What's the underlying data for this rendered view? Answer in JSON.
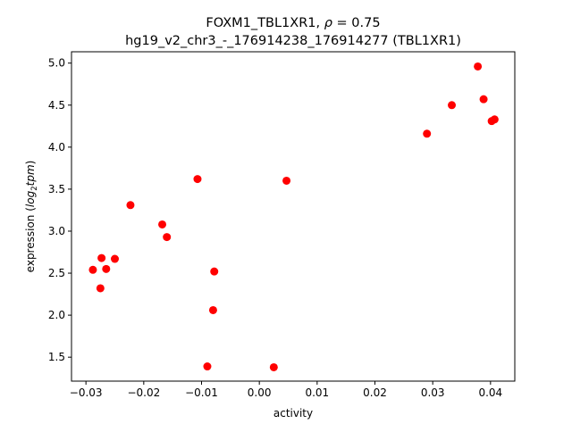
{
  "chart_data": {
    "type": "scatter",
    "title_line1_prefix": "FOXM1_TBL1XR1, ",
    "title_rho_symbol": "ρ",
    "title_rho_value": " = 0.75",
    "title_line2": "hg19_v2_chr3_-_176914238_176914277 (TBL1XR1)",
    "xlabel": "activity",
    "ylabel_prefix": "expression (",
    "ylabel_log": "log",
    "ylabel_sub": "2",
    "ylabel_tpm": "tpm",
    "ylabel_suffix": ")",
    "xlim": [
      -0.0325,
      0.0442
    ],
    "ylim": [
      1.215,
      5.135
    ],
    "xticks": [
      -0.03,
      -0.02,
      -0.01,
      0.0,
      0.01,
      0.02,
      0.03,
      0.04
    ],
    "xtick_labels": [
      "−0.03",
      "−0.02",
      "−0.01",
      "0.00",
      "0.01",
      "0.02",
      "0.03",
      "0.04"
    ],
    "yticks": [
      1.5,
      2.0,
      2.5,
      3.0,
      3.5,
      4.0,
      4.5,
      5.0
    ],
    "ytick_labels": [
      "1.5",
      "2.0",
      "2.5",
      "3.0",
      "3.5",
      "4.0",
      "4.5",
      "5.0"
    ],
    "marker_color": "#ff0000",
    "points": [
      {
        "x": -0.0288,
        "y": 2.54
      },
      {
        "x": -0.0275,
        "y": 2.32
      },
      {
        "x": -0.0273,
        "y": 2.68
      },
      {
        "x": -0.0265,
        "y": 2.55
      },
      {
        "x": -0.025,
        "y": 2.67
      },
      {
        "x": -0.0223,
        "y": 3.31
      },
      {
        "x": -0.0168,
        "y": 3.08
      },
      {
        "x": -0.016,
        "y": 2.93
      },
      {
        "x": -0.0107,
        "y": 3.62
      },
      {
        "x": -0.009,
        "y": 1.39
      },
      {
        "x": -0.008,
        "y": 2.06
      },
      {
        "x": -0.0078,
        "y": 2.52
      },
      {
        "x": 0.0025,
        "y": 1.38
      },
      {
        "x": 0.0047,
        "y": 3.6
      },
      {
        "x": 0.029,
        "y": 4.16
      },
      {
        "x": 0.0333,
        "y": 4.5
      },
      {
        "x": 0.0378,
        "y": 4.96
      },
      {
        "x": 0.0388,
        "y": 4.57
      },
      {
        "x": 0.0402,
        "y": 4.31
      },
      {
        "x": 0.0407,
        "y": 4.33
      }
    ]
  }
}
